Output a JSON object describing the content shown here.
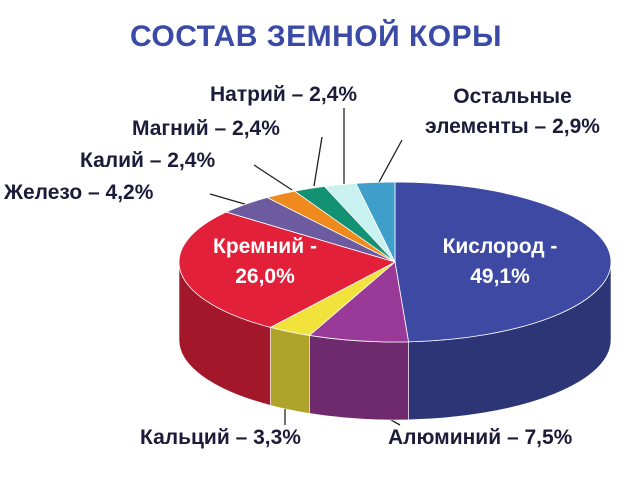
{
  "chart_data": {
    "type": "pie3d",
    "title": "СОСТАВ ЗЕМНОЙ КОРЫ",
    "categories": [
      "Кислород -",
      "Алюминий –",
      "Кальций –",
      "Кремний -",
      "Железо –",
      "Калий –",
      "Магний –",
      "Натрий –",
      "Остальные элементы –"
    ],
    "values": [
      49.1,
      7.5,
      3.3,
      26.0,
      4.2,
      2.4,
      2.4,
      2.4,
      2.9
    ],
    "value_labels": [
      "49,1%",
      "7,5%",
      "3,3%",
      "26,0%",
      "4,2%",
      "2,4%",
      "2,4%",
      "2,4%",
      "2,9%"
    ],
    "colors": [
      "#3d49a3",
      "#9a3a98",
      "#f2e23c",
      "#e2203a",
      "#6c5b9e",
      "#ef8a1e",
      "#129272",
      "#c9f1ef",
      "#3f9fca"
    ]
  }
}
